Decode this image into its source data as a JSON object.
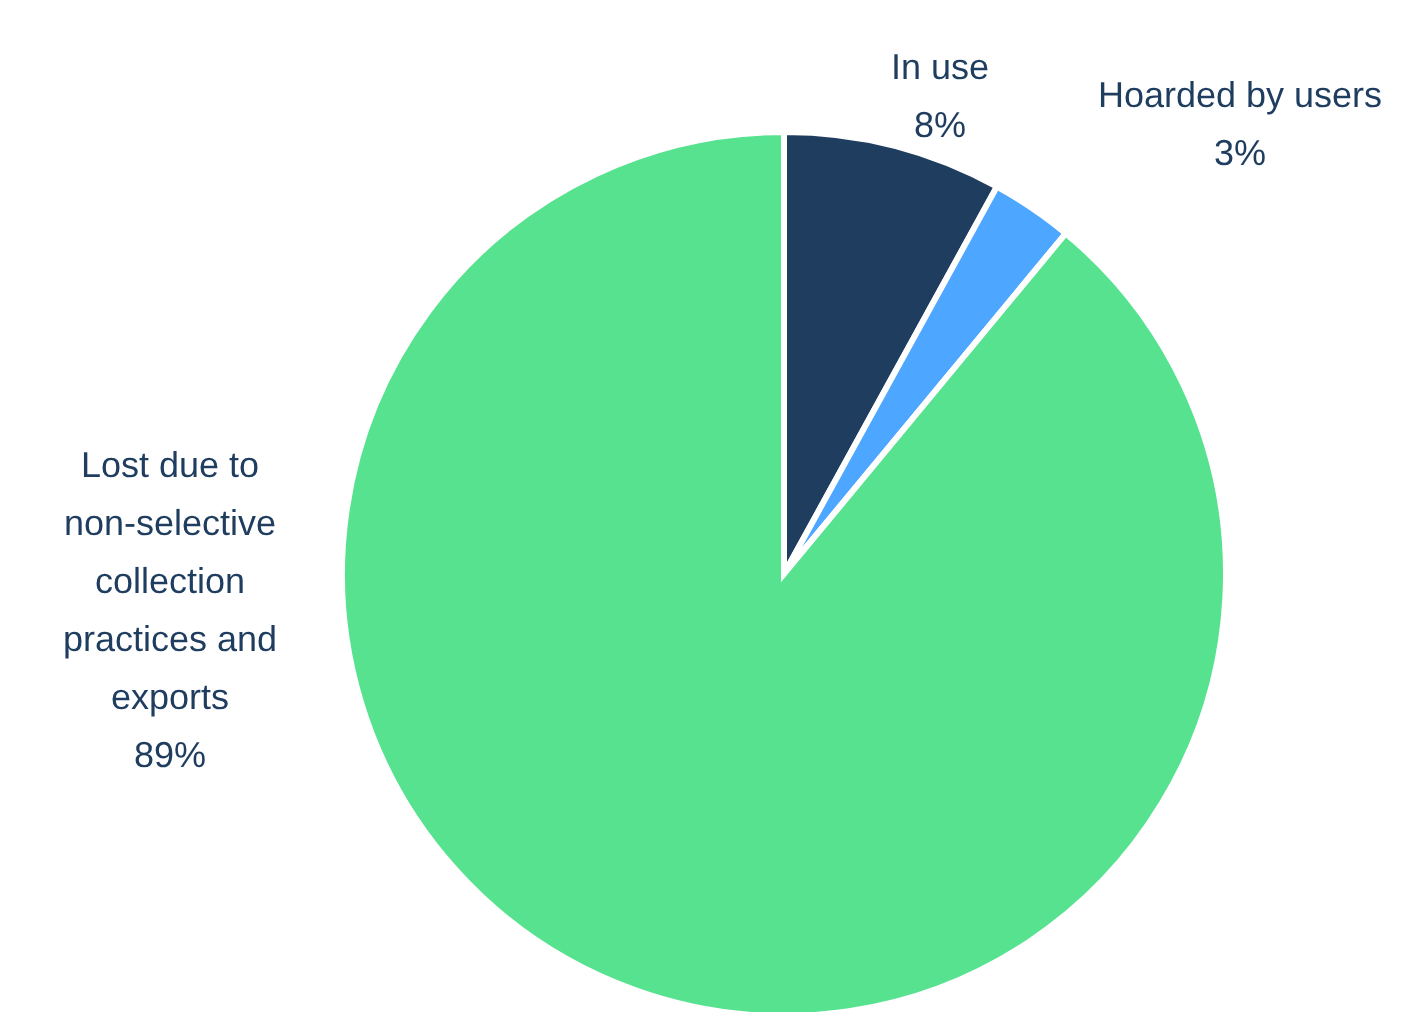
{
  "chart_data": {
    "type": "pie",
    "categories": [
      "In use",
      "Hoarded by users",
      "Lost due to non-selective collection practices and exports"
    ],
    "values": [
      8,
      3,
      89
    ],
    "colors": [
      "#1f3d5f",
      "#4da6ff",
      "#57e28f"
    ],
    "value_labels": [
      "8%",
      "3%",
      "89%"
    ],
    "legend": false
  }
}
